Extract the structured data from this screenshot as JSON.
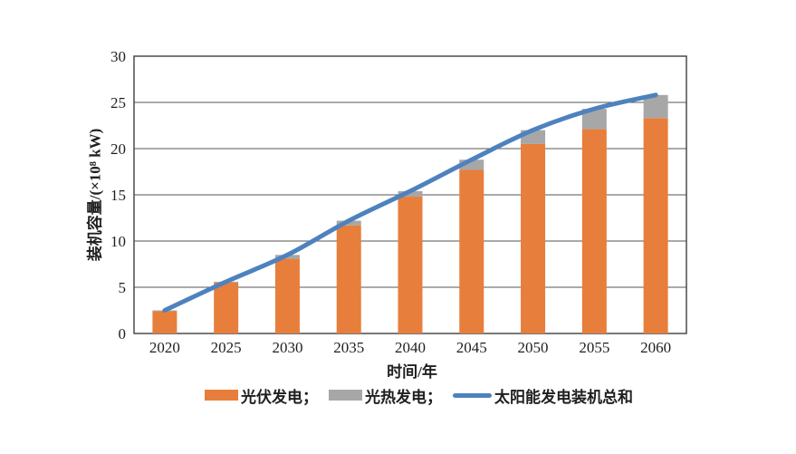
{
  "page": {
    "background": "#ffffff"
  },
  "axes": {
    "x_title": "时间/年",
    "y_title": "装机容量/(×10⁸ kW)"
  },
  "legend": {
    "items": [
      {
        "label": "光伏发电；",
        "swatch": "rect",
        "color": "#e87e3b"
      },
      {
        "label": "光热发电；",
        "swatch": "rect",
        "color": "#a7a7a7"
      },
      {
        "label": "太阳能发电装机总和",
        "swatch": "line",
        "color": "#4e82be"
      }
    ]
  },
  "chart_data": {
    "type": "bar",
    "subtype": "stacked-bars-with-total-line",
    "title": "",
    "xlabel": "时间/年",
    "ylabel": "装机容量/(×10⁸ kW)",
    "categories": [
      "2020",
      "2025",
      "2030",
      "2035",
      "2040",
      "2045",
      "2050",
      "2055",
      "2060"
    ],
    "series": [
      {
        "name": "光伏发电",
        "type": "bar",
        "color": "#e87e3b",
        "values": [
          2.4,
          5.5,
          8.1,
          11.7,
          14.8,
          17.7,
          20.5,
          22.1,
          23.3
        ]
      },
      {
        "name": "光热发电",
        "type": "bar",
        "color": "#a7a7a7",
        "values": [
          0.1,
          0.1,
          0.4,
          0.5,
          0.6,
          1.1,
          1.5,
          2.2,
          2.5
        ]
      },
      {
        "name": "太阳能发电装机总和",
        "type": "line",
        "color": "#4e82be",
        "values": [
          2.5,
          5.6,
          8.5,
          12.2,
          15.4,
          18.8,
          22.0,
          24.3,
          25.8
        ]
      }
    ],
    "ylim": [
      0,
      30
    ],
    "yticks": [
      0,
      5,
      10,
      15,
      20,
      25,
      30
    ],
    "grid": true,
    "legend_position": "bottom"
  },
  "style": {
    "grid_color": "#555555",
    "border_color": "#3f3f3f",
    "text_color": "#1f1f1f"
  }
}
